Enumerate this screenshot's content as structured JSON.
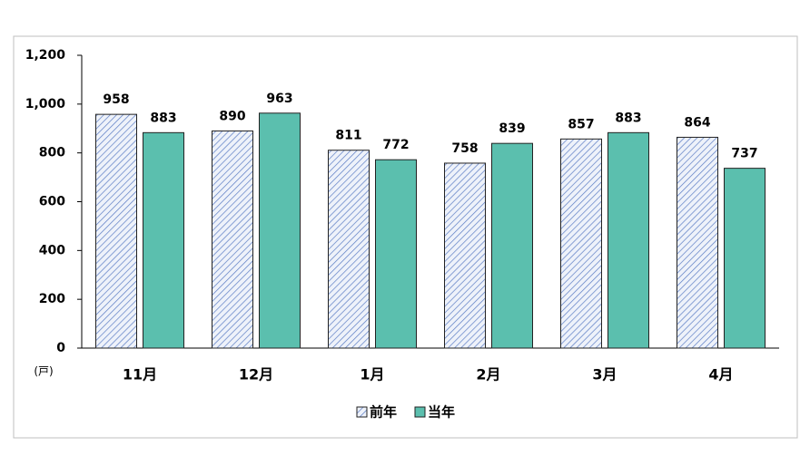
{
  "chart_data": {
    "type": "bar",
    "categories": [
      "11月",
      "12月",
      "1月",
      "2月",
      "3月",
      "4月"
    ],
    "series": [
      {
        "name": "前年",
        "color": "#5b7cc4",
        "values": [
          958,
          890,
          811,
          758,
          857,
          864
        ]
      },
      {
        "name": "当年",
        "color": "#5bbfae",
        "values": [
          883,
          963,
          772,
          839,
          883,
          737
        ]
      }
    ],
    "ylabel": "(戸)",
    "ylim": [
      0,
      1200
    ],
    "yticks": [
      0,
      200,
      400,
      600,
      800,
      {
        "value": 1000,
        "label": "1,000"
      },
      {
        "value": 1200,
        "label": "1,200"
      }
    ],
    "grid": false,
    "legend": "bottom"
  }
}
